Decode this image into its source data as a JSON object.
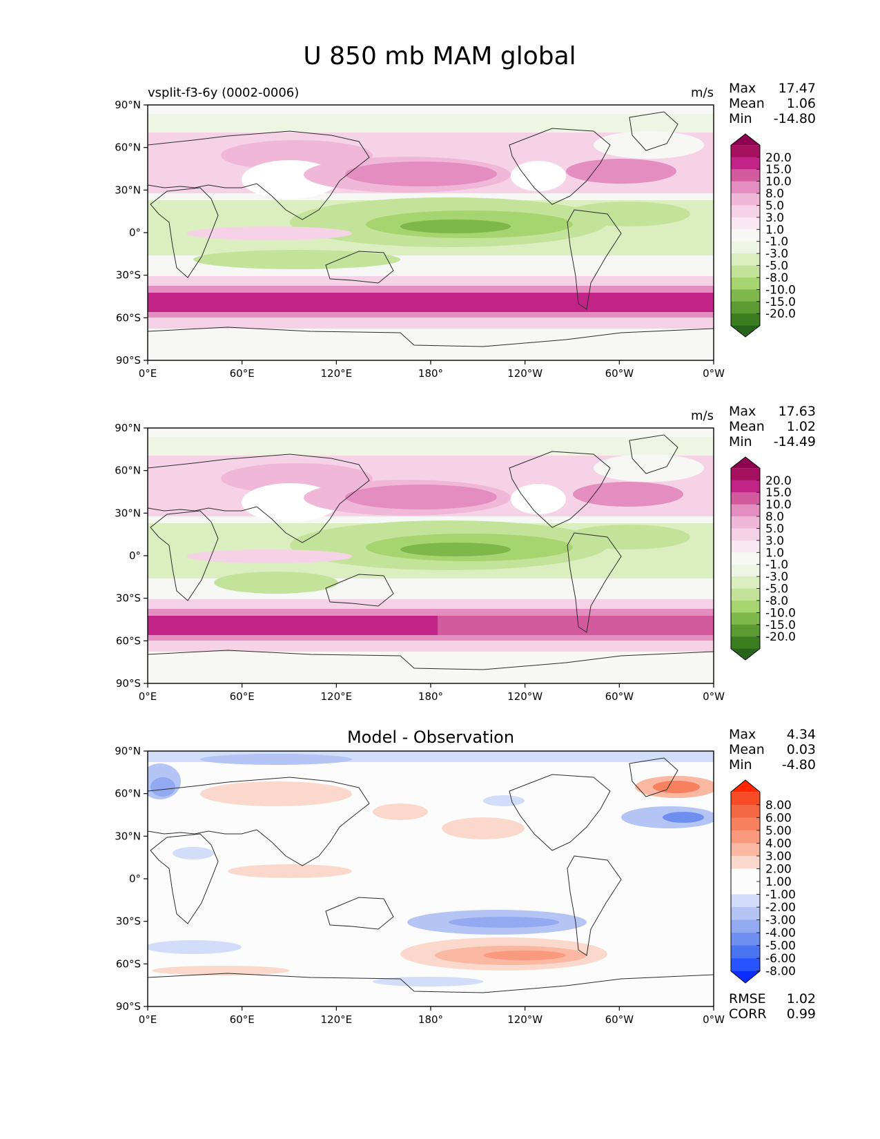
{
  "figure": {
    "title": "U 850 mb MAM global"
  },
  "palettes": {
    "pink_green": [
      "#276419",
      "#3b7e1f",
      "#5b9b31",
      "#7fb84a",
      "#a6d46e",
      "#c4e39a",
      "#dbeec0",
      "#eef5e3",
      "#f7f7f6",
      "#f9e8f1",
      "#f6d2e6",
      "#f0b7d8",
      "#e48dc0",
      "#d45aa0",
      "#c12486",
      "#a5105f",
      "#8e0152"
    ],
    "blue_red": [
      "#0a2cff",
      "#2854ff",
      "#4a73f0",
      "#6f8ff0",
      "#93aaf2",
      "#b3c4f5",
      "#d2ddf9",
      "#fcfcfc",
      "#fcfcfc",
      "#fbd8cc",
      "#fab8a2",
      "#f99a7e",
      "#f7805f",
      "#f66743",
      "#f54c27",
      "#ff2600"
    ]
  },
  "chart_data": [
    {
      "type": "heatmap",
      "id": "test",
      "title": "",
      "left_title": "vsplit-f3-6y (0002-0006)",
      "units": "m/s",
      "stats": [
        {
          "label": "Max",
          "value": "17.47"
        },
        {
          "label": "Mean",
          "value": "1.06"
        },
        {
          "label": "Min",
          "value": "-14.80"
        }
      ],
      "x_ticks": [
        "0°E",
        "60°E",
        "120°E",
        "180°",
        "120°W",
        "60°W",
        "0°W"
      ],
      "y_ticks": [
        "90°N",
        "60°N",
        "30°N",
        "0°",
        "30°S",
        "60°S",
        "90°S"
      ],
      "xlim": [
        0,
        360
      ],
      "ylim": [
        -90,
        90
      ],
      "colorbar": {
        "palette": "pink_green",
        "extend": "both",
        "levels": [
          -20,
          -15,
          -10,
          -8,
          -5,
          -3,
          -1,
          1,
          3,
          5,
          8,
          10,
          15,
          20
        ],
        "labels": [
          "20.0",
          "15.0",
          "10.0",
          "8.0",
          "5.0",
          "3.0",
          "1.0",
          "-1.0",
          "-3.0",
          "-5.0",
          "-8.0",
          "-10.0",
          "-15.0",
          "-20.0"
        ]
      },
      "approx_pattern": "westerly jets near 30-50°N (max ~15 m/s over N Pacific and N Atlantic) and strong 45-60°S southern jet (>15 m/s); tropical easterlies (-5 to -10 m/s) over the Pacific and Atlantic"
    },
    {
      "type": "heatmap",
      "id": "reference",
      "title": "",
      "left_title": "",
      "units": "m/s",
      "stats": [
        {
          "label": "Max",
          "value": "17.63"
        },
        {
          "label": "Mean",
          "value": "1.02"
        },
        {
          "label": "Min",
          "value": "-14.49"
        }
      ],
      "x_ticks": [
        "0°E",
        "60°E",
        "120°E",
        "180°",
        "120°W",
        "60°W",
        "0°W"
      ],
      "y_ticks": [
        "90°N",
        "60°N",
        "30°N",
        "0°",
        "30°S",
        "60°S",
        "90°S"
      ],
      "xlim": [
        0,
        360
      ],
      "ylim": [
        -90,
        90
      ],
      "colorbar": {
        "palette": "pink_green",
        "extend": "both",
        "levels": [
          -20,
          -15,
          -10,
          -8,
          -5,
          -3,
          -1,
          1,
          3,
          5,
          8,
          10,
          15,
          20
        ],
        "labels": [
          "20.0",
          "15.0",
          "10.0",
          "8.0",
          "5.0",
          "3.0",
          "1.0",
          "-1.0",
          "-3.0",
          "-5.0",
          "-8.0",
          "-10.0",
          "-15.0",
          "-20.0"
        ]
      },
      "approx_pattern": "similar structure to the model field; southern jet slightly weaker in the eastern Pacific"
    },
    {
      "type": "heatmap",
      "id": "difference",
      "title": "Model - Observation",
      "left_title": "",
      "units": "",
      "stats": [
        {
          "label": "Max",
          "value": "4.34"
        },
        {
          "label": "Mean",
          "value": "0.03"
        },
        {
          "label": "Min",
          "value": "-4.80"
        }
      ],
      "bottom_stats": [
        {
          "label": "RMSE",
          "value": "1.02"
        },
        {
          "label": "CORR",
          "value": "0.99"
        }
      ],
      "x_ticks": [
        "0°E",
        "60°E",
        "120°E",
        "180°",
        "120°W",
        "60°W",
        "0°W"
      ],
      "y_ticks": [
        "90°N",
        "60°N",
        "30°N",
        "0°",
        "30°S",
        "60°S",
        "90°S"
      ],
      "xlim": [
        0,
        360
      ],
      "ylim": [
        -90,
        90
      ],
      "colorbar": {
        "palette": "blue_red",
        "extend": "both",
        "levels": [
          -8,
          -6,
          -5,
          -4,
          -3,
          -2,
          -1,
          1,
          2,
          3,
          4,
          5,
          6,
          8
        ],
        "labels": [
          "8.00",
          "6.00",
          "5.00",
          "4.00",
          "3.00",
          "2.00",
          "1.00",
          "-1.00",
          "-2.00",
          "-3.00",
          "-4.00",
          "-5.00",
          "-6.00",
          "-8.00"
        ]
      },
      "approx_pattern": "mostly near zero; positive bias ~2-4 m/s near 50°S in the Pacific and off southern Greenland, negative ~-3 to -4 m/s near 40°N in the Atlantic and 30-40°S in the eastern Pacific"
    }
  ]
}
